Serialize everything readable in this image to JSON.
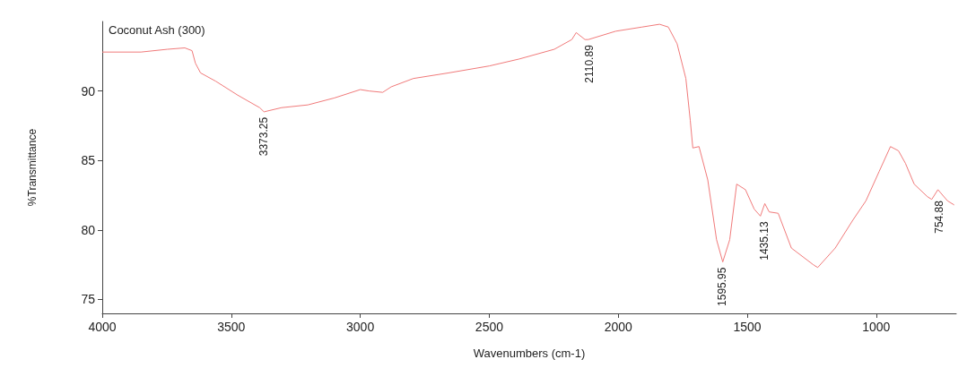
{
  "chart_data": {
    "type": "line",
    "title": "Coconut Ash (300)",
    "xlabel": "Wavenumbers (cm-1)",
    "ylabel": "%Transmittance",
    "xlim": [
      4000,
      690
    ],
    "xticks": [
      4000,
      3500,
      3000,
      2500,
      2000,
      1500,
      1000
    ],
    "ylim": [
      74,
      95
    ],
    "yticks": [
      75,
      80,
      85,
      90
    ],
    "grid": false,
    "marker": "none",
    "line_style": "solid",
    "series": [
      {
        "color": "#f07a7a",
        "x": [
          4000,
          3850,
          3748,
          3680,
          3652,
          3639,
          3619,
          3560,
          3475,
          3390,
          3373,
          3305,
          3203,
          3100,
          3000,
          2966,
          2913,
          2880,
          2794,
          2658,
          2500,
          2384,
          2248,
          2180,
          2163,
          2129,
          2116,
          2010,
          1908,
          1840,
          1806,
          1772,
          1738,
          1721,
          1711,
          1687,
          1653,
          1619,
          1595,
          1568,
          1541,
          1507,
          1473,
          1449,
          1432,
          1415,
          1380,
          1329,
          1244,
          1227,
          1159,
          1091,
          1040,
          989,
          945,
          914,
          887,
          853,
          802,
          785,
          761,
          724,
          698
        ],
        "values": [
          92.8,
          92.8,
          93.0,
          93.1,
          92.9,
          92.0,
          91.3,
          90.7,
          89.7,
          88.8,
          88.5,
          88.8,
          89.0,
          89.5,
          90.1,
          90.0,
          89.9,
          90.3,
          90.9,
          91.3,
          91.8,
          92.3,
          93.0,
          93.7,
          94.2,
          93.7,
          93.7,
          94.3,
          94.6,
          94.8,
          94.6,
          93.4,
          90.9,
          87.9,
          85.9,
          86.0,
          83.6,
          79.3,
          77.7,
          79.3,
          83.3,
          82.9,
          81.5,
          81.0,
          81.9,
          81.3,
          81.2,
          78.7,
          77.5,
          77.3,
          78.7,
          80.7,
          82.1,
          84.2,
          86.0,
          85.7,
          84.8,
          83.3,
          82.4,
          82.2,
          82.9,
          82.1,
          81.8
        ]
      }
    ],
    "annotations": [
      {
        "text": "3373.25",
        "x": 3373.25,
        "y": 88.5
      },
      {
        "text": "2110.89",
        "x": 2110.89,
        "y": 93.7
      },
      {
        "text": "1595.95",
        "x": 1595.95,
        "y": 77.7
      },
      {
        "text": "1435.13",
        "x": 1435.13,
        "y": 81.0
      },
      {
        "text": "754.88",
        "x": 754.88,
        "y": 82.5
      }
    ]
  }
}
